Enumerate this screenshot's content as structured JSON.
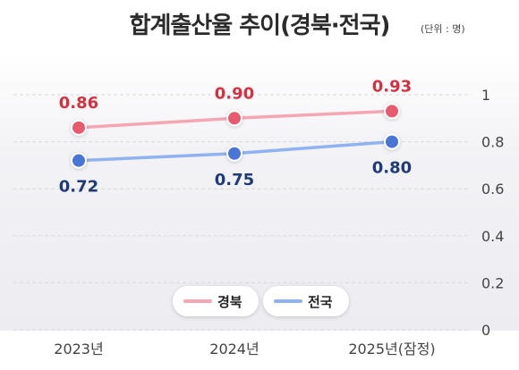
{
  "title": "합계출산율 추이(경북·전국)",
  "unit": "(단위 : 명)",
  "chart_data": {
    "type": "line",
    "categories": [
      "2023년",
      "2024년",
      "2025년(잠정)"
    ],
    "series": [
      {
        "name": "경북",
        "values": [
          0.86,
          0.9,
          0.93
        ],
        "color": "#f4a7b2",
        "marker": "#e85a6e",
        "label_color": "#d62f3e"
      },
      {
        "name": "전국",
        "values": [
          0.72,
          0.75,
          0.8
        ],
        "color": "#8fb2f0",
        "marker": "#4a74d6",
        "label_color": "#1e3a7a"
      }
    ],
    "ylim": [
      0,
      1
    ],
    "yticks": [
      "0",
      "0.2",
      "0.4",
      "0.6",
      "0.8",
      "1"
    ],
    "grid": true,
    "legend": "bottom-center"
  }
}
